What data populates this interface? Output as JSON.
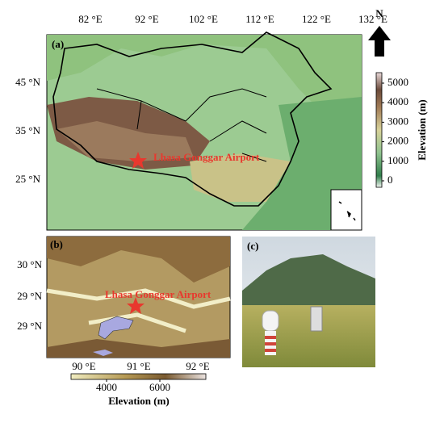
{
  "north_arrow": "N",
  "panel_a": {
    "label": "(a)",
    "lon_ticks": [
      "82 °E",
      "92 °E",
      "102 °E",
      "112 °E",
      "122 °E",
      "132 °E"
    ],
    "lat_ticks": [
      "45 °N",
      "35 °N",
      "25 °N"
    ],
    "annotation": "Lhasa Gonggar Airport",
    "colorbar": {
      "label": "Elevation (m)",
      "ticks": [
        5000,
        4000,
        3000,
        2000,
        1000,
        0
      ]
    }
  },
  "panel_b": {
    "label": "(b)",
    "lat_ticks": [
      "30 °N",
      "29 °N",
      "29 °N"
    ],
    "lon_ticks": [
      "90 °E",
      "91 °E",
      "92 °E"
    ],
    "annotation": "Lhasa Gonggar Airport",
    "colorbar": {
      "label": "Elevation (m)",
      "ticks": [
        4000,
        6000
      ]
    }
  },
  "panel_c": {
    "label": "(c)"
  }
}
